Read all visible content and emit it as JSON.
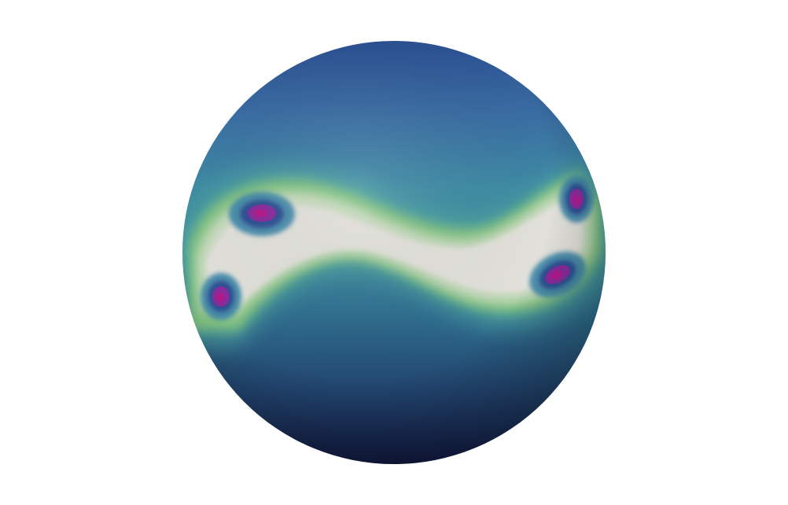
{
  "scene": {
    "background_color": "#ffffff",
    "subject": "sphere",
    "colormap": [
      "#151e45",
      "#2d4f86",
      "#3d7a9e",
      "#55a39e",
      "#86c87a",
      "#c9dea6",
      "#e6e0dc",
      "#7a2d9a",
      "#a31c90"
    ],
    "vortex_count": 4
  }
}
